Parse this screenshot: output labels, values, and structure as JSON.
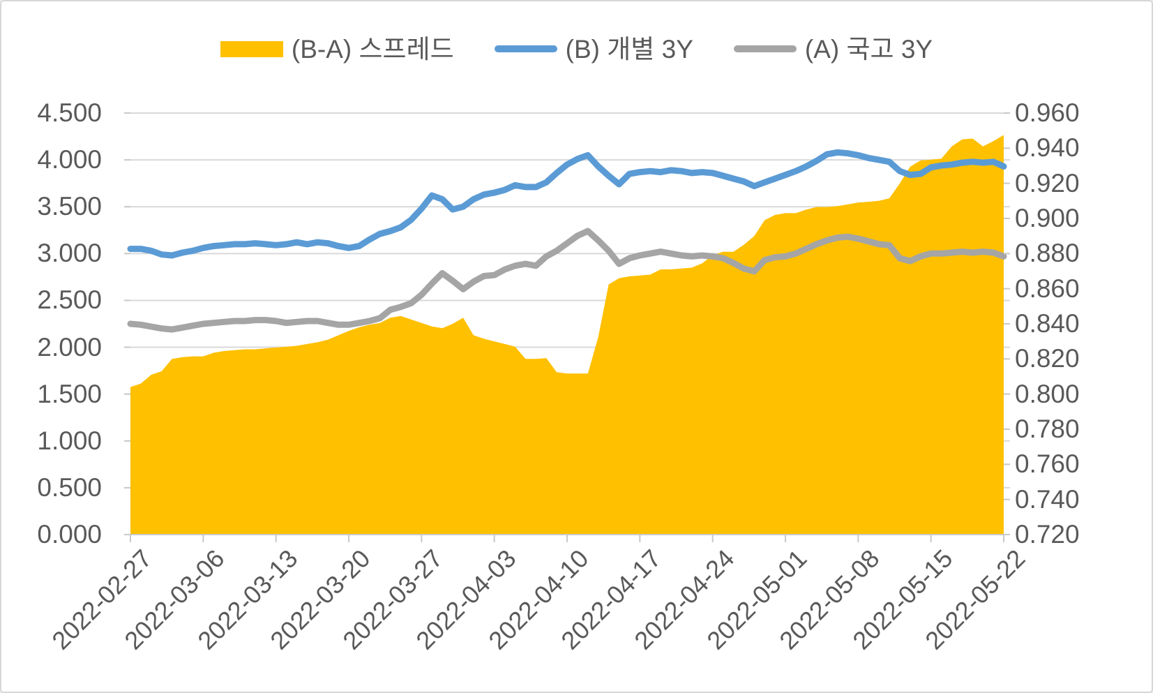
{
  "chart_data": {
    "type": "combo",
    "title": "",
    "background": "#ffffff",
    "text_color": "#595959",
    "gridline_color": "#d9d9d9",
    "axis_line_color": "#c9c9c9",
    "grid": true,
    "legend_position": "top",
    "x_count": 85,
    "x_start_date": "2022-02-27",
    "x_tick_every_days": 7,
    "x_tick_labels": [
      "2022-02-27",
      "2022-03-06",
      "2022-03-13",
      "2022-03-20",
      "2022-03-27",
      "2022-04-03",
      "2022-04-10",
      "2022-04-17",
      "2022-04-24",
      "2022-05-01",
      "2022-05-08",
      "2022-05-15",
      "2022-05-22"
    ],
    "left_axis": {
      "min": 0.0,
      "max": 4.5,
      "step": 0.5,
      "tick_labels": [
        "0.000",
        "0.500",
        "1.000",
        "1.500",
        "2.000",
        "2.500",
        "3.000",
        "3.500",
        "4.000",
        "4.500"
      ]
    },
    "right_axis": {
      "min": 0.72,
      "max": 0.96,
      "step": 0.02,
      "tick_labels": [
        "0.720",
        "0.740",
        "0.760",
        "0.780",
        "0.800",
        "0.820",
        "0.840",
        "0.860",
        "0.880",
        "0.900",
        "0.920",
        "0.940",
        "0.960"
      ]
    },
    "series": [
      {
        "name": "(B-A) 스프레드",
        "type": "area",
        "axis": "right",
        "color": "#FFC000",
        "values": [
          0.804,
          0.806,
          0.811,
          0.813,
          0.82,
          0.821,
          0.8215,
          0.8215,
          0.8235,
          0.8245,
          0.825,
          0.8255,
          0.8255,
          0.826,
          0.8265,
          0.827,
          0.8275,
          0.8285,
          0.8295,
          0.831,
          0.8335,
          0.836,
          0.838,
          0.8395,
          0.8405,
          0.8435,
          0.8445,
          0.8425,
          0.8405,
          0.8385,
          0.8375,
          0.84,
          0.8435,
          0.8335,
          0.8315,
          0.83,
          0.8285,
          0.827,
          0.82,
          0.82,
          0.8205,
          0.8125,
          0.8117,
          0.8117,
          0.8117,
          0.8325,
          0.8624,
          0.866,
          0.867,
          0.8675,
          0.868,
          0.871,
          0.871,
          0.8715,
          0.872,
          0.8745,
          0.879,
          0.881,
          0.881,
          0.885,
          0.89,
          0.899,
          0.902,
          0.903,
          0.903,
          0.905,
          0.9065,
          0.9065,
          0.907,
          0.908,
          0.909,
          0.9095,
          0.91,
          0.9115,
          0.92,
          0.9295,
          0.933,
          0.9335,
          0.934,
          0.941,
          0.945,
          0.9455,
          0.941,
          0.944,
          0.9475
        ]
      },
      {
        "name": "(B) 개별 3Y",
        "type": "line",
        "axis": "left",
        "color": "#5B9BD5",
        "values": [
          3.05,
          3.05,
          3.03,
          2.99,
          2.98,
          3.01,
          3.03,
          3.06,
          3.08,
          3.09,
          3.1,
          3.1,
          3.11,
          3.1,
          3.09,
          3.1,
          3.12,
          3.1,
          3.12,
          3.11,
          3.08,
          3.06,
          3.08,
          3.15,
          3.21,
          3.24,
          3.28,
          3.36,
          3.48,
          3.62,
          3.58,
          3.47,
          3.5,
          3.58,
          3.63,
          3.65,
          3.68,
          3.73,
          3.71,
          3.71,
          3.76,
          3.86,
          3.95,
          4.01,
          4.05,
          3.93,
          3.83,
          3.74,
          3.85,
          3.87,
          3.88,
          3.87,
          3.89,
          3.88,
          3.86,
          3.87,
          3.86,
          3.83,
          3.8,
          3.77,
          3.72,
          3.76,
          3.8,
          3.84,
          3.88,
          3.93,
          3.99,
          4.06,
          4.08,
          4.07,
          4.05,
          4.02,
          4.0,
          3.98,
          3.88,
          3.84,
          3.85,
          3.92,
          3.94,
          3.95,
          3.97,
          3.98,
          3.97,
          3.98,
          3.93
        ]
      },
      {
        "name": "(A) 국고 3Y",
        "type": "line",
        "axis": "left",
        "color": "#A5A5A5",
        "values": [
          2.25,
          2.24,
          2.22,
          2.2,
          2.19,
          2.21,
          2.23,
          2.25,
          2.26,
          2.27,
          2.28,
          2.28,
          2.29,
          2.29,
          2.28,
          2.26,
          2.27,
          2.28,
          2.28,
          2.26,
          2.24,
          2.24,
          2.26,
          2.28,
          2.31,
          2.4,
          2.43,
          2.47,
          2.56,
          2.68,
          2.79,
          2.71,
          2.62,
          2.7,
          2.76,
          2.77,
          2.83,
          2.87,
          2.89,
          2.87,
          2.97,
          3.03,
          3.11,
          3.19,
          3.24,
          3.14,
          3.03,
          2.89,
          2.95,
          2.98,
          3.0,
          3.02,
          3.0,
          2.98,
          2.97,
          2.98,
          2.97,
          2.95,
          2.9,
          2.84,
          2.81,
          2.93,
          2.96,
          2.97,
          3.0,
          3.05,
          3.1,
          3.14,
          3.17,
          3.18,
          3.16,
          3.13,
          3.1,
          3.09,
          2.95,
          2.92,
          2.97,
          3.0,
          3.0,
          3.01,
          3.02,
          3.01,
          3.02,
          3.01,
          2.97
        ]
      }
    ]
  }
}
